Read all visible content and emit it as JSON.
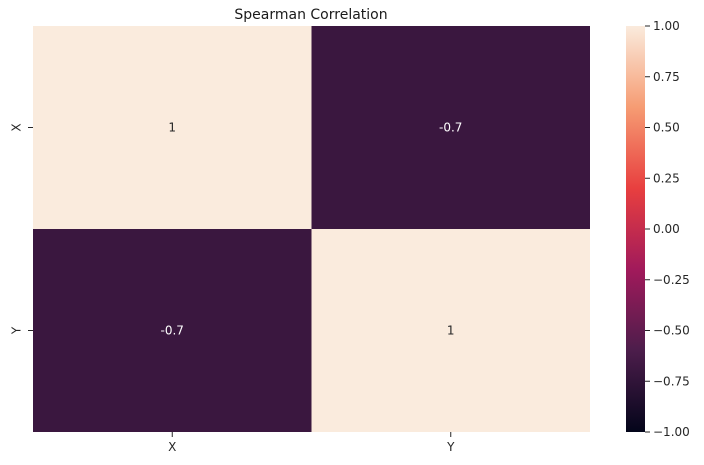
{
  "chart_data": {
    "type": "heatmap",
    "title": "Spearman Correlation",
    "x_categories": [
      "X",
      "Y"
    ],
    "y_categories": [
      "X",
      "Y"
    ],
    "values": [
      [
        1,
        -0.7
      ],
      [
        -0.7,
        1
      ]
    ],
    "cell_labels": [
      [
        "1",
        "-0.7"
      ],
      [
        "-0.7",
        "1"
      ]
    ],
    "colorbar": {
      "range": [
        -1.0,
        1.0
      ],
      "ticks": [
        1.0,
        0.75,
        0.5,
        0.25,
        0.0,
        -0.25,
        -0.5,
        -0.75,
        -1.0
      ],
      "tick_labels": [
        "1.00",
        "0.75",
        "0.50",
        "0.25",
        "0.00",
        "−0.25",
        "−0.50",
        "−0.75",
        "−1.00"
      ]
    },
    "colormap": "rocket",
    "colormap_stops": [
      "#03051a",
      "#4c1d4b",
      "#a11a5b",
      "#e83f3f",
      "#f69c73",
      "#faebdd"
    ]
  }
}
